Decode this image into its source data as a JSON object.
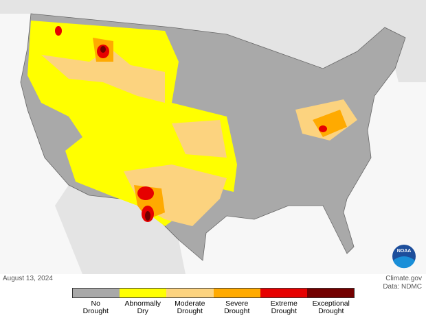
{
  "logo": {
    "text": "NOAA"
  },
  "footer": {
    "date": "August 13, 2024",
    "credit": "Climate.gov",
    "source": "Data: NDMC"
  },
  "legend": {
    "items": [
      {
        "label": "No Drought",
        "color": "#a9a9a9"
      },
      {
        "label": "Abnormally Dry",
        "color": "#ffff00"
      },
      {
        "label": "Moderate Drought",
        "color": "#fcd37f"
      },
      {
        "label": "Severe Drought",
        "color": "#ffaa00"
      },
      {
        "label": "Extreme Drought",
        "color": "#e60000"
      },
      {
        "label": "Exceptional Drought",
        "color": "#730000"
      }
    ]
  }
}
